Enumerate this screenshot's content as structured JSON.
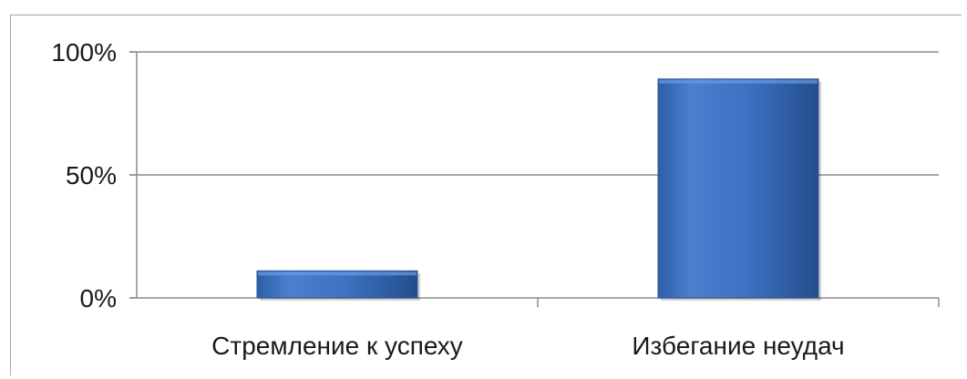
{
  "chart_data": {
    "type": "bar",
    "categories": [
      "Стремление к успеху",
      "Избегание неудач"
    ],
    "values": [
      11,
      89
    ],
    "ylim": [
      0,
      100
    ],
    "yticks": [
      0,
      50,
      100
    ],
    "ytick_labels": [
      "0%",
      "50%",
      "100%"
    ],
    "grid": true,
    "bar_color": "#3f74c4",
    "bar_color_dark": "#2a5596",
    "bar_color_light": "#6a9be0",
    "gridline_color": "#8c8c8c"
  }
}
